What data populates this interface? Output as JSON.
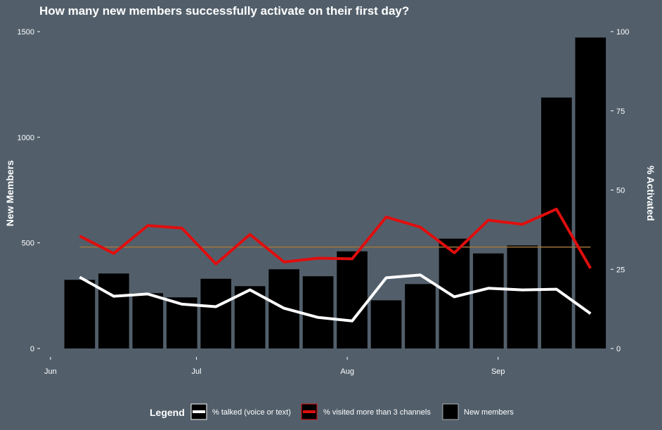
{
  "chart_data": {
    "type": "bar",
    "title": "How many new members successfully activate on their first day?",
    "ylabel_left": "New Members",
    "ylabel_right": "% Activated",
    "ylim_left": [
      0,
      1500
    ],
    "ylim_right": [
      0,
      100
    ],
    "yticks_left": [
      "0",
      "500",
      "1000",
      "1500"
    ],
    "yticks_right": [
      "0",
      "25",
      "50",
      "75",
      "100"
    ],
    "x_ticks": [
      {
        "label": "Jun",
        "day": 0
      },
      {
        "label": "Jul",
        "day": 30
      },
      {
        "label": "Aug",
        "day": 61
      },
      {
        "label": "Sep",
        "day": 92
      }
    ],
    "x_range_days": [
      -2,
      115
    ],
    "bar_width_days": 6.3,
    "weeks_day": [
      6,
      13,
      20,
      27,
      34,
      41,
      48,
      55,
      62,
      69,
      76,
      83,
      90,
      97,
      104,
      111
    ],
    "series": [
      {
        "name": "New members",
        "kind": "bar",
        "axis": "left",
        "color": "#000000",
        "values": [
          325,
          355,
          262,
          242,
          330,
          295,
          375,
          342,
          460,
          228,
          305,
          520,
          450,
          488,
          1188,
          1472
        ]
      },
      {
        "name": "% talked (voice or text)",
        "kind": "line",
        "axis": "right",
        "color": "#ffffff",
        "values": [
          22.5,
          16.5,
          17.2,
          14,
          13.2,
          18.5,
          12.7,
          9.8,
          8.7,
          22.3,
          23.2,
          16.3,
          19,
          18.5,
          18.7,
          11
        ]
      },
      {
        "name": "% visited more than 3 channels",
        "kind": "line",
        "axis": "right",
        "color": "#e00e0e",
        "values": [
          35.5,
          30,
          38.8,
          38,
          26.7,
          36,
          27.3,
          28.5,
          28.3,
          41.5,
          38.3,
          30.2,
          40.5,
          39.2,
          44,
          25.3
        ]
      }
    ],
    "reference_line": {
      "axis": "left",
      "value": 480,
      "from_day": 6,
      "to_day": 111,
      "color": "#a0753a"
    },
    "legend": {
      "title": "Legend",
      "position": "bottom"
    },
    "grid": false
  }
}
